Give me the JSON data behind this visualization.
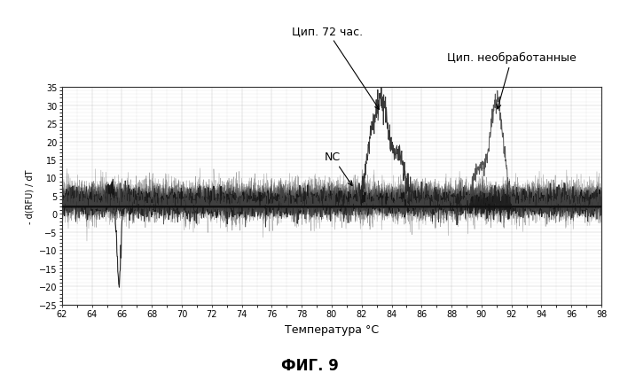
{
  "title_fig": "ФИГ. 9",
  "xlabel": "Температура °C",
  "ylabel": "- d(RFU) / dT",
  "xlim": [
    62,
    98
  ],
  "ylim": [
    -25,
    35
  ],
  "xticks": [
    62,
    64,
    66,
    68,
    70,
    72,
    74,
    76,
    78,
    80,
    82,
    84,
    86,
    88,
    90,
    92,
    94,
    96,
    98
  ],
  "yticks": [
    -25,
    -20,
    -15,
    -10,
    -5,
    0,
    5,
    10,
    15,
    20,
    25,
    30,
    35
  ],
  "annotation_72h": "Цип. 72 час.",
  "annotation_nc": "NC",
  "annotation_raw": "Цип. необработанные",
  "background_color": "#ffffff",
  "grid_color": "#999999",
  "hline_y": 2.0,
  "peak1_x": 83.3,
  "peak1_y": 28,
  "peak2_x": 91.0,
  "peak2_y": 29,
  "spike_x": 65.8,
  "spike_y": -22
}
